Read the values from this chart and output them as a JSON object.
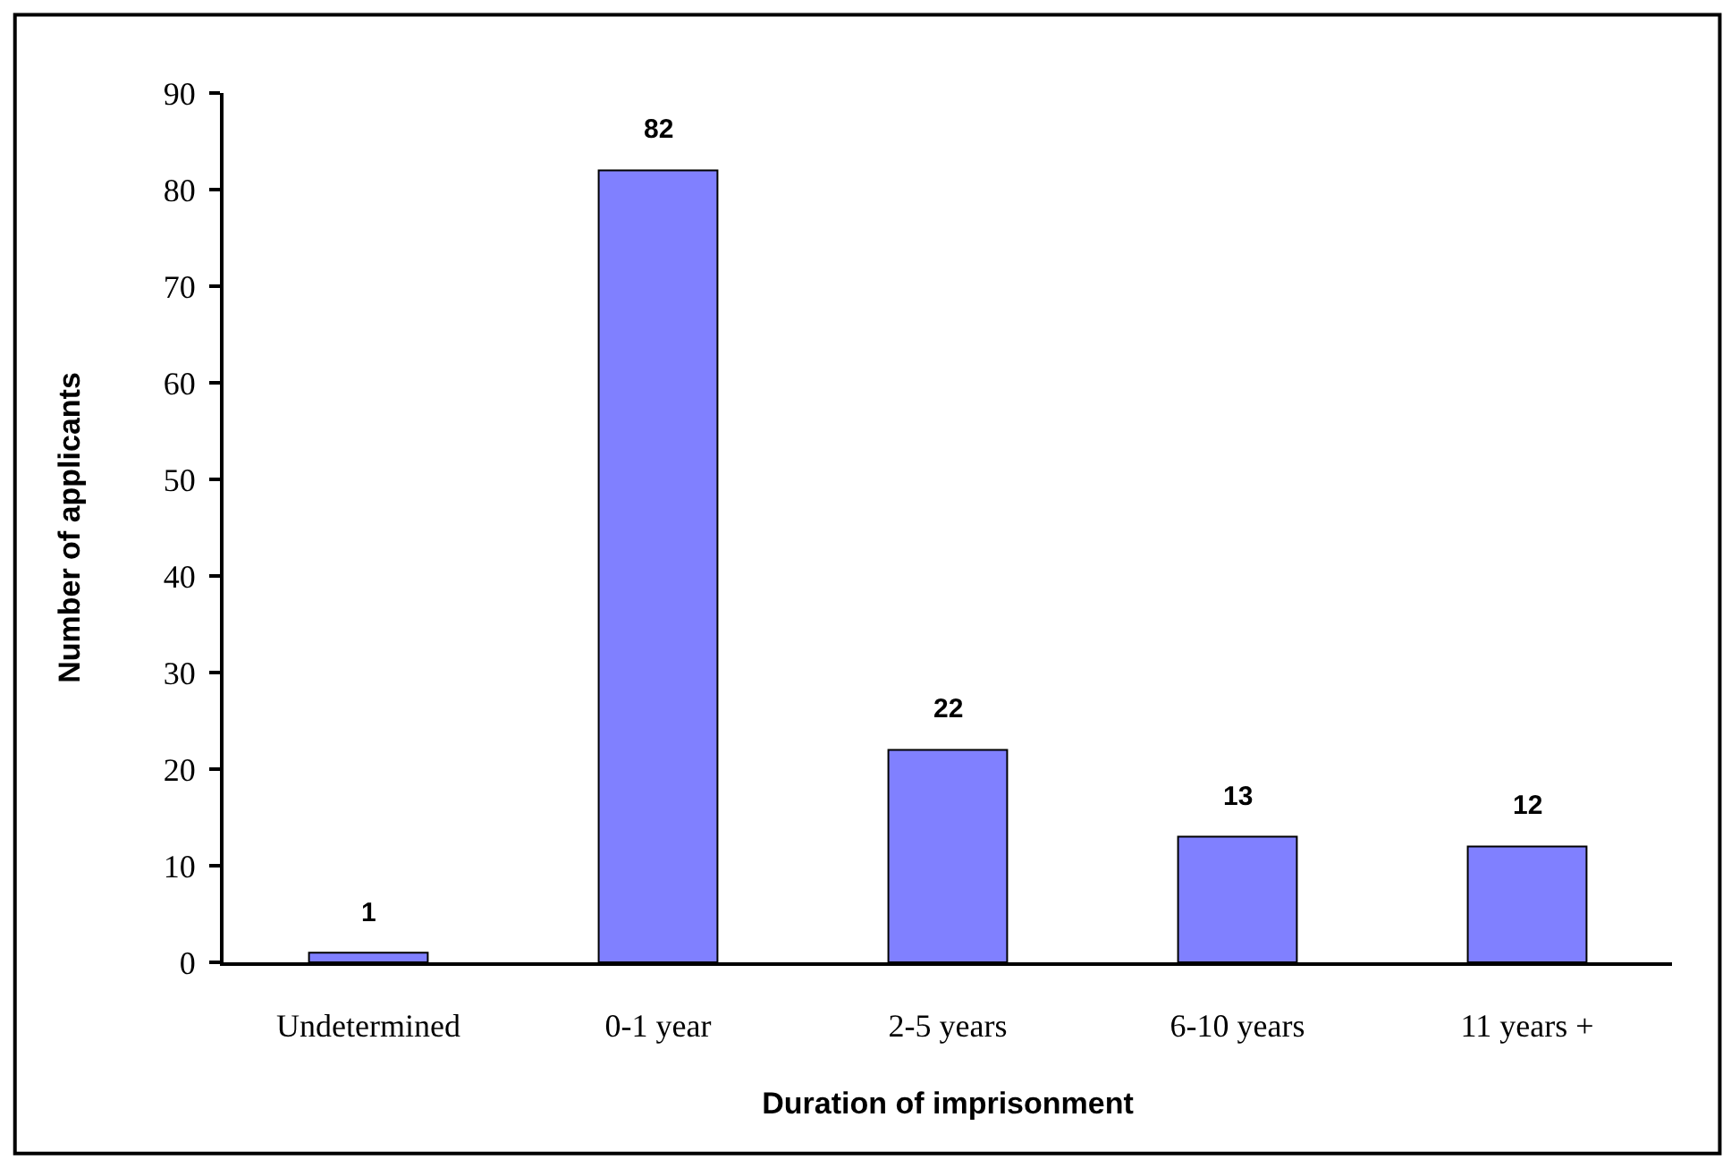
{
  "chart_data": {
    "type": "bar",
    "xlabel": "Duration of imprisonment",
    "ylabel": "Number of applicants",
    "categories": [
      "Undetermined",
      "0-1 year",
      "2-5 years",
      "6-10 years",
      "11 years +"
    ],
    "values": [
      1,
      82,
      22,
      13,
      12
    ],
    "color": "#8080ff",
    "ylim": [
      0,
      90
    ],
    "yticks": [
      0,
      10,
      20,
      30,
      40,
      50,
      60,
      70,
      80,
      90
    ],
    "data_labels": true
  }
}
